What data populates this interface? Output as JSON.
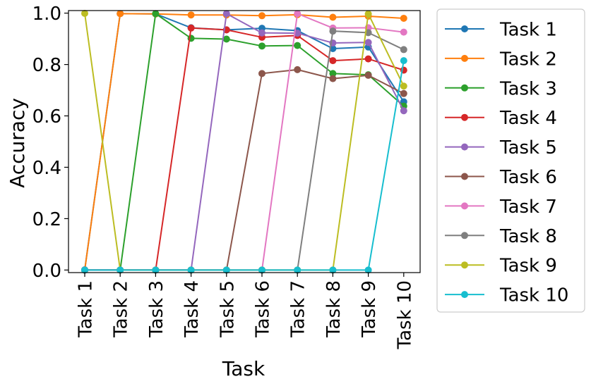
{
  "chart_data": {
    "type": "line",
    "title": "",
    "xlabel": "Task",
    "ylabel": "Accuracy",
    "categories": [
      "Task 1",
      "Task 2",
      "Task 3",
      "Task 4",
      "Task 5",
      "Task 6",
      "Task 7",
      "Task 8",
      "Task 9",
      "Task 10"
    ],
    "ylim": [
      -0.01,
      1.01
    ],
    "yticks": [
      "0.0",
      "0.2",
      "0.4",
      "0.6",
      "0.8",
      "1.0"
    ],
    "grid": false,
    "legend_position": "outside-right",
    "series": [
      {
        "name": "Task 1",
        "color": "#1f77b4",
        "values": [
          0.001,
          0.998,
          0.997,
          0.943,
          0.935,
          0.941,
          0.932,
          0.862,
          0.868,
          0.655
        ]
      },
      {
        "name": "Task 2",
        "color": "#ff7f0e",
        "values": [
          0.0,
          0.998,
          0.997,
          0.993,
          0.993,
          0.99,
          0.994,
          0.984,
          0.988,
          0.98
        ]
      },
      {
        "name": "Task 3",
        "color": "#2ca02c",
        "values": [
          0.0,
          0.0,
          0.998,
          0.902,
          0.899,
          0.872,
          0.874,
          0.765,
          0.76,
          0.638
        ]
      },
      {
        "name": "Task 4",
        "color": "#d62728",
        "values": [
          0.0,
          0.0,
          0.0,
          0.942,
          0.935,
          0.906,
          0.913,
          0.815,
          0.822,
          0.778
        ]
      },
      {
        "name": "Task 5",
        "color": "#9467bd",
        "values": [
          0.0,
          0.0,
          0.0,
          0.0,
          0.998,
          0.923,
          0.922,
          0.884,
          0.886,
          0.62
        ]
      },
      {
        "name": "Task 6",
        "color": "#8c564b",
        "values": [
          0.0,
          0.0,
          0.0,
          0.0,
          0.0,
          0.765,
          0.78,
          0.745,
          0.758,
          0.687
        ]
      },
      {
        "name": "Task 7",
        "color": "#e377c2",
        "values": [
          0.0,
          0.0,
          0.0,
          0.0,
          0.0,
          0.0,
          0.998,
          0.942,
          0.943,
          0.926
        ]
      },
      {
        "name": "Task 8",
        "color": "#7f7f7f",
        "values": [
          0.0,
          0.0,
          0.0,
          0.0,
          0.0,
          0.0,
          0.0,
          0.93,
          0.924,
          0.858
        ]
      },
      {
        "name": "Task 9",
        "color": "#bcbd22",
        "values": [
          0.999,
          0.0,
          0.0,
          0.0,
          0.0,
          0.0,
          0.0,
          0.0,
          0.997,
          0.716
        ]
      },
      {
        "name": "Task 10",
        "color": "#17becf",
        "values": [
          0.0,
          0.0,
          0.0,
          0.0,
          0.0,
          0.0,
          0.0,
          0.0,
          0.0,
          0.815
        ]
      }
    ]
  }
}
